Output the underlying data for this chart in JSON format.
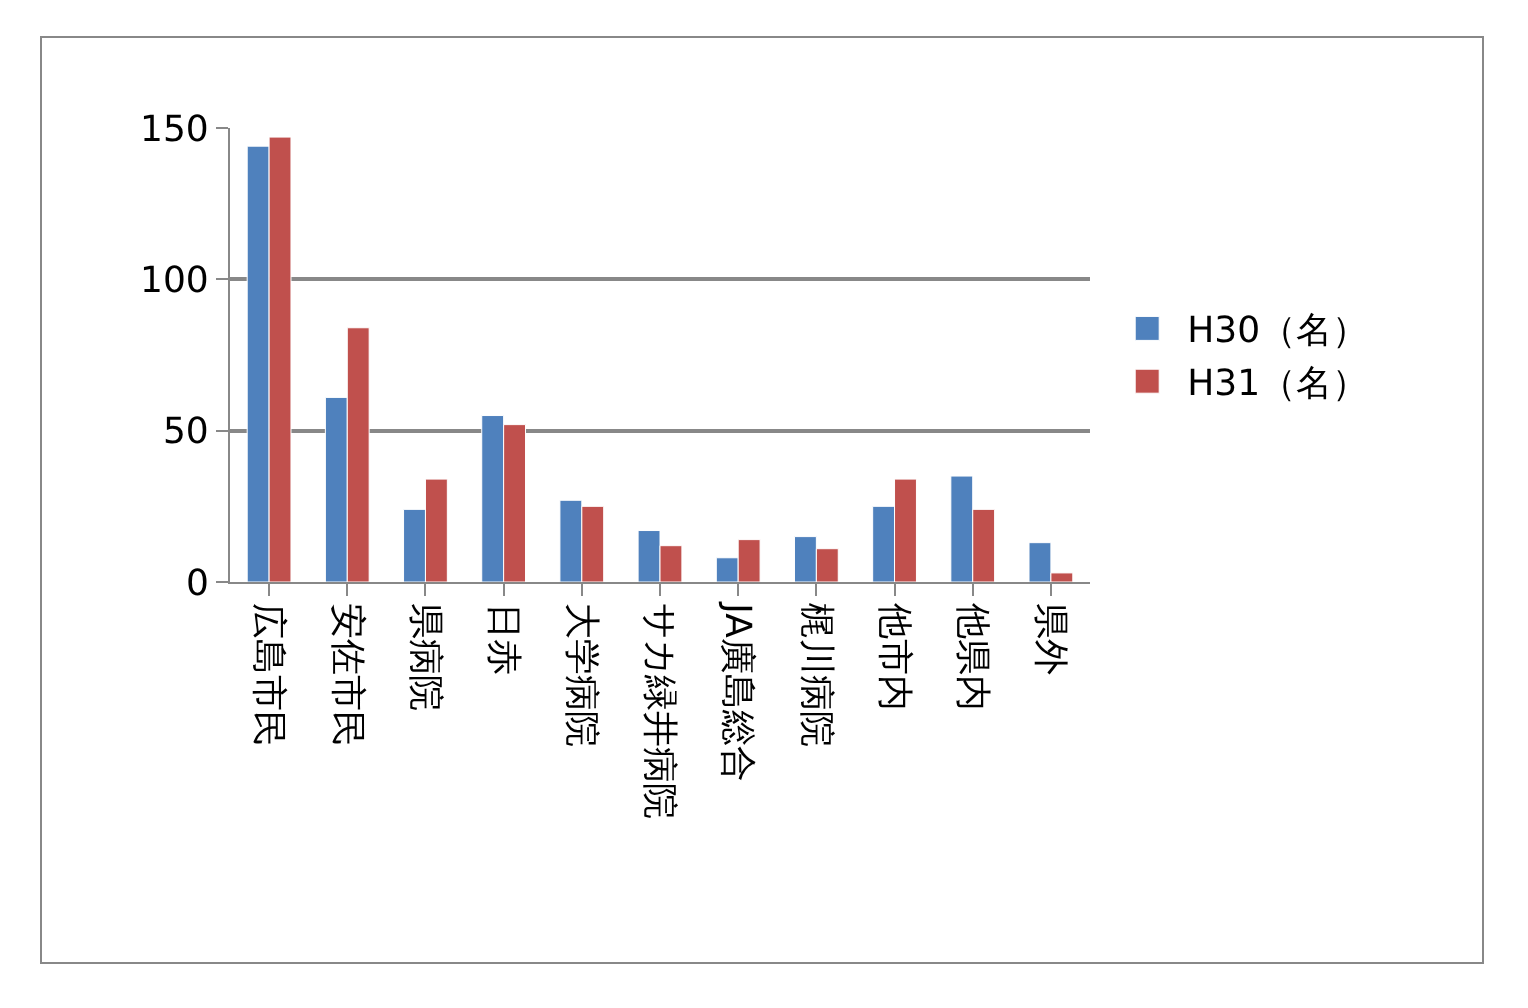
{
  "chart_data": {
    "type": "bar",
    "categories": [
      "広島市民",
      "安佐市民",
      "県病院",
      "日赤",
      "大学病院",
      "サカ緑井病院",
      "JA廣島総合",
      "梶川病院",
      "他市内",
      "他県内",
      "県外"
    ],
    "series": [
      {
        "name": "H30（名）",
        "color": "#4f81bd",
        "values": [
          144,
          61,
          24,
          55,
          27,
          17,
          8,
          15,
          25,
          35,
          13
        ]
      },
      {
        "name": "H31（名）",
        "color": "#c0504d",
        "values": [
          147,
          84,
          34,
          52,
          25,
          12,
          14,
          11,
          34,
          24,
          3
        ]
      }
    ],
    "ylim": [
      0,
      150
    ],
    "yticks": [
      0,
      50,
      100,
      150
    ],
    "grid": "y",
    "legend": "right"
  }
}
